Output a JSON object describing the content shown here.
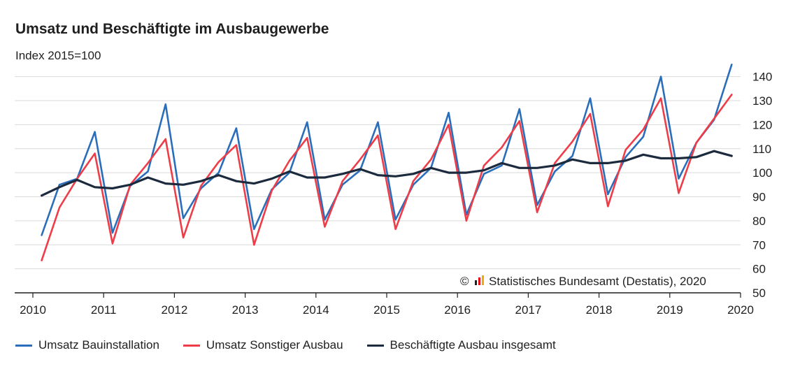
{
  "chart_data": {
    "type": "line",
    "title": "Umsatz und Beschäftigte im Ausbaugewerbe",
    "subtitle": "Index 2015=100",
    "x_tick_labels": [
      "2010",
      "2011",
      "2012",
      "2013",
      "2014",
      "2015",
      "2016",
      "2017",
      "2018",
      "2019",
      "2020"
    ],
    "y_tick_labels": [
      "50",
      "60",
      "70",
      "80",
      "90",
      "100",
      "110",
      "120",
      "130",
      "140"
    ],
    "ylim": [
      50,
      145
    ],
    "xlim": [
      2010,
      2020
    ],
    "y_axis_position": "right",
    "grid": "horizontal",
    "legend_position": "bottom",
    "x": [
      "2010 Q1",
      "2010 Q2",
      "2010 Q3",
      "2010 Q4",
      "2011 Q1",
      "2011 Q2",
      "2011 Q3",
      "2011 Q4",
      "2012 Q1",
      "2012 Q2",
      "2012 Q3",
      "2012 Q4",
      "2013 Q1",
      "2013 Q2",
      "2013 Q3",
      "2013 Q4",
      "2014 Q1",
      "2014 Q2",
      "2014 Q3",
      "2014 Q4",
      "2015 Q1",
      "2015 Q2",
      "2015 Q3",
      "2015 Q4",
      "2016 Q1",
      "2016 Q2",
      "2016 Q3",
      "2016 Q4",
      "2017 Q1",
      "2017 Q2",
      "2017 Q3",
      "2017 Q4",
      "2018 Q1",
      "2018 Q2",
      "2018 Q3",
      "2018 Q4",
      "2019 Q1",
      "2019 Q2",
      "2019 Q3",
      "2019 Q4"
    ],
    "series": [
      {
        "name": "Umsatz Bauinstallation",
        "color": "#2a6ebb",
        "values": [
          74,
          95,
          97.5,
          117,
          75,
          94.5,
          100.5,
          128.5,
          81,
          93.5,
          100,
          118.5,
          76.5,
          93,
          100,
          121,
          80.5,
          95,
          101,
          121,
          80.5,
          95,
          102,
          125,
          82.5,
          99.5,
          103,
          126.5,
          86.5,
          100.5,
          107,
          131,
          91,
          106.5,
          115,
          140,
          97.5,
          112.5,
          122,
          145
        ]
      },
      {
        "name": "Umsatz Sonstiger Ausbau",
        "color": "#ee3d48",
        "values": [
          63.5,
          85.5,
          97.5,
          108,
          70.5,
          95,
          104,
          114,
          73,
          94.5,
          104.5,
          111.5,
          70,
          92.5,
          105,
          114.5,
          77.5,
          96.5,
          105.5,
          115.5,
          76.5,
          96.5,
          105.5,
          120,
          80,
          103,
          110.5,
          121.5,
          83.5,
          104,
          113,
          124.5,
          86,
          109.5,
          118,
          131,
          91.5,
          112.5,
          122.5,
          132.5
        ]
      },
      {
        "name": "Beschäftigte Ausbau insgesamt",
        "color": "#1b2a3c",
        "values": [
          90.5,
          94,
          97,
          94,
          93.5,
          95,
          98,
          95.5,
          95,
          96.5,
          99,
          96.5,
          95.5,
          97.5,
          100.5,
          98,
          98,
          99.5,
          101.5,
          99,
          98.5,
          99.5,
          102,
          100,
          100,
          101,
          104,
          102,
          102,
          103,
          105.5,
          104,
          104,
          105,
          107.5,
          106,
          106,
          106.5,
          109,
          107
        ]
      }
    ],
    "credit": "Statistisches Bundesamt (Destatis), 2020",
    "credit_symbol": "©"
  }
}
